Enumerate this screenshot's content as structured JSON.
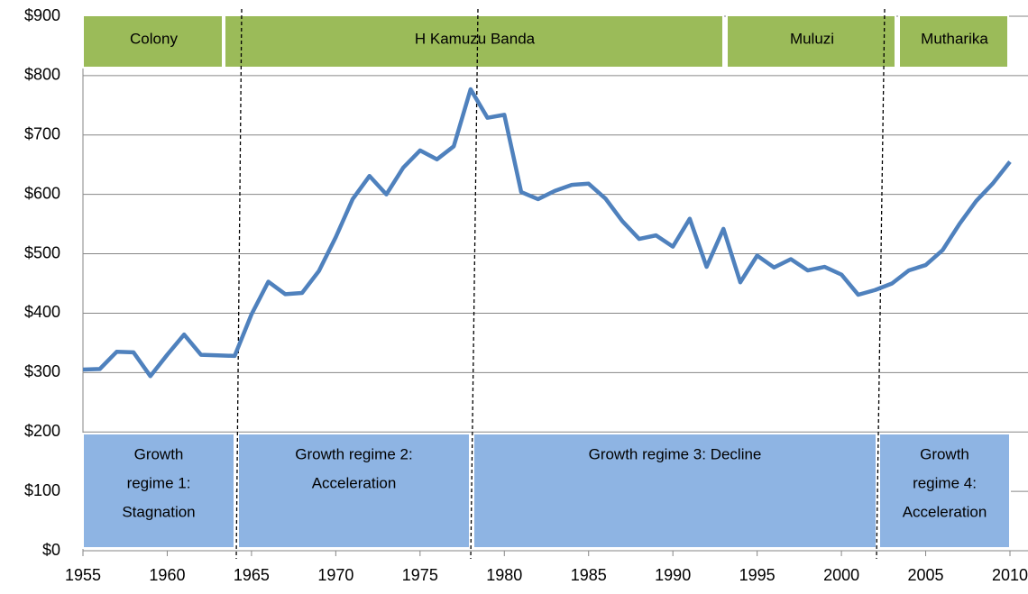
{
  "chart_data": {
    "type": "line",
    "x": [
      1955,
      1956,
      1957,
      1958,
      1959,
      1960,
      1961,
      1962,
      1963,
      1964,
      1965,
      1966,
      1967,
      1968,
      1969,
      1970,
      1971,
      1972,
      1973,
      1974,
      1975,
      1976,
      1977,
      1978,
      1979,
      1980,
      1981,
      1982,
      1983,
      1984,
      1985,
      1986,
      1987,
      1988,
      1989,
      1990,
      1991,
      1992,
      1993,
      1994,
      1995,
      1996,
      1997,
      1998,
      1999,
      2000,
      2001,
      2002,
      2003,
      2004,
      2005,
      2006,
      2007,
      2008,
      2009,
      2010
    ],
    "values": [
      305,
      306,
      335,
      334,
      294,
      330,
      364,
      330,
      329,
      328,
      398,
      453,
      432,
      434,
      471,
      528,
      592,
      631,
      600,
      645,
      674,
      659,
      681,
      777,
      729,
      734,
      604,
      592,
      606,
      616,
      618,
      593,
      555,
      525,
      531,
      512,
      559,
      478,
      542,
      452,
      497,
      477,
      491,
      472,
      478,
      465,
      431,
      439,
      450,
      472,
      481,
      506,
      550,
      589,
      619,
      655
    ],
    "color": "#4f81bd",
    "xlim": [
      1955,
      2010
    ],
    "xticks": [
      1955,
      1960,
      1965,
      1970,
      1975,
      1980,
      1985,
      1990,
      1995,
      2000,
      2005,
      2010
    ],
    "ylim": [
      0,
      900
    ],
    "yticks": [
      {
        "value": 0,
        "label": "$0"
      },
      {
        "value": 100,
        "label": "$100"
      },
      {
        "value": 200,
        "label": "$200"
      },
      {
        "value": 300,
        "label": "$300"
      },
      {
        "value": 400,
        "label": "$400"
      },
      {
        "value": 500,
        "label": "$500"
      },
      {
        "value": 600,
        "label": "$600"
      },
      {
        "value": 700,
        "label": "$700"
      },
      {
        "value": 800,
        "label": "$800"
      },
      {
        "value": 900,
        "label": "$900"
      }
    ],
    "grid": true,
    "leaders": [
      "Colony",
      "H Kamuzu Banda",
      "Muluzi",
      "Mutharika"
    ],
    "regimes": [
      [
        "Growth",
        "regime 1:",
        "Stagnation"
      ],
      [
        "Growth regime 2:",
        "Acceleration"
      ],
      [
        "Growth regime 3: Decline"
      ],
      [
        "Growth",
        "regime 4:",
        "Acceleration"
      ]
    ]
  }
}
